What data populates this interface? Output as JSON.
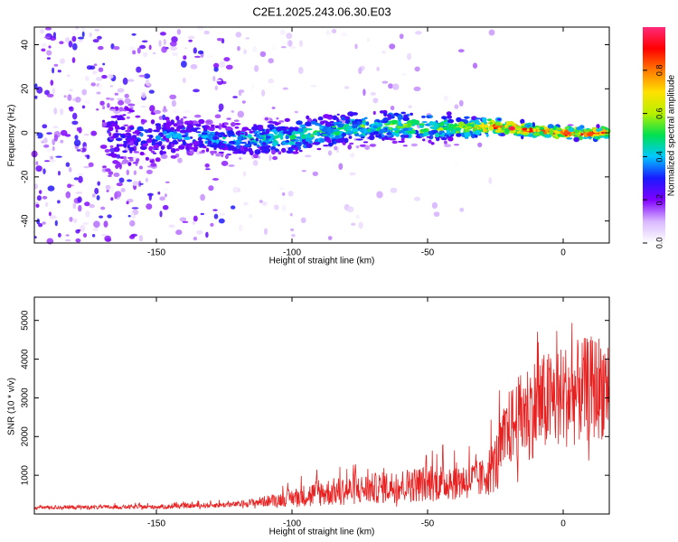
{
  "figure": {
    "title": "C2E1.2025.243.06.30.E03"
  },
  "chart_data": [
    {
      "type": "heatmap",
      "title": "",
      "xlabel": "Height of straight line (km)",
      "ylabel": "Frequency (Hz)",
      "xlim": [
        -195,
        17
      ],
      "ylim": [
        -50,
        48
      ],
      "xticks": [
        -150,
        -100,
        -50,
        0
      ],
      "yticks": [
        -40,
        -20,
        0,
        20,
        40
      ],
      "colorbar": {
        "label": "Normalized spectral amplitude",
        "range": [
          0,
          1
        ],
        "ticks": [
          0.0,
          0.2,
          0.4,
          0.6,
          0.8
        ],
        "colors": [
          "#ffffff",
          "#d9b8ff",
          "#8000ff",
          "#1a1aff",
          "#00c8ff",
          "#00e050",
          "#b8f000",
          "#ffe000",
          "#ff7a00",
          "#ff0000",
          "#ff2a7a"
        ]
      },
      "ridge": [
        {
          "x": -195,
          "freq": 0,
          "amp": 0.15,
          "width": 40
        },
        {
          "x": -165,
          "freq": -2,
          "amp": 0.3,
          "width": 30
        },
        {
          "x": -140,
          "freq": -1,
          "amp": 0.4,
          "width": 12
        },
        {
          "x": -120,
          "freq": -3,
          "amp": 0.45,
          "width": 10
        },
        {
          "x": -100,
          "freq": -2,
          "amp": 0.5,
          "width": 12
        },
        {
          "x": -80,
          "freq": 2,
          "amp": 0.55,
          "width": 10
        },
        {
          "x": -60,
          "freq": 3,
          "amp": 0.6,
          "width": 10
        },
        {
          "x": -40,
          "freq": 2,
          "amp": 0.65,
          "width": 8
        },
        {
          "x": -25,
          "freq": 3,
          "amp": 0.95,
          "width": 5
        },
        {
          "x": -10,
          "freq": 1,
          "amp": 0.9,
          "width": 4
        },
        {
          "x": 0,
          "freq": 0,
          "amp": 0.98,
          "width": 4
        },
        {
          "x": 17,
          "freq": 0,
          "amp": 0.9,
          "width": 4
        }
      ]
    },
    {
      "type": "line",
      "title": "",
      "xlabel": "Height of straight line (km)",
      "ylabel": "SNR (10 * v/v)",
      "xlim": [
        -195,
        17
      ],
      "ylim": [
        0,
        5600
      ],
      "xticks": [
        -150,
        -100,
        -50,
        0
      ],
      "yticks": [
        1000,
        2000,
        3000,
        4000,
        5000
      ],
      "color": "#e82020",
      "envelope": [
        {
          "x": -195,
          "base": 150,
          "spread": 100
        },
        {
          "x": -150,
          "base": 160,
          "spread": 110
        },
        {
          "x": -120,
          "base": 220,
          "spread": 150
        },
        {
          "x": -105,
          "base": 300,
          "spread": 350
        },
        {
          "x": -90,
          "base": 400,
          "spread": 700
        },
        {
          "x": -70,
          "base": 500,
          "spread": 800
        },
        {
          "x": -50,
          "base": 600,
          "spread": 950
        },
        {
          "x": -30,
          "base": 700,
          "spread": 1000
        },
        {
          "x": -25,
          "base": 1000,
          "spread": 1500
        },
        {
          "x": -20,
          "base": 1800,
          "spread": 2000
        },
        {
          "x": -12,
          "base": 2200,
          "spread": 2600
        },
        {
          "x": 0,
          "base": 2500,
          "spread": 2700
        },
        {
          "x": 17,
          "base": 2800,
          "spread": 2800
        }
      ]
    }
  ]
}
